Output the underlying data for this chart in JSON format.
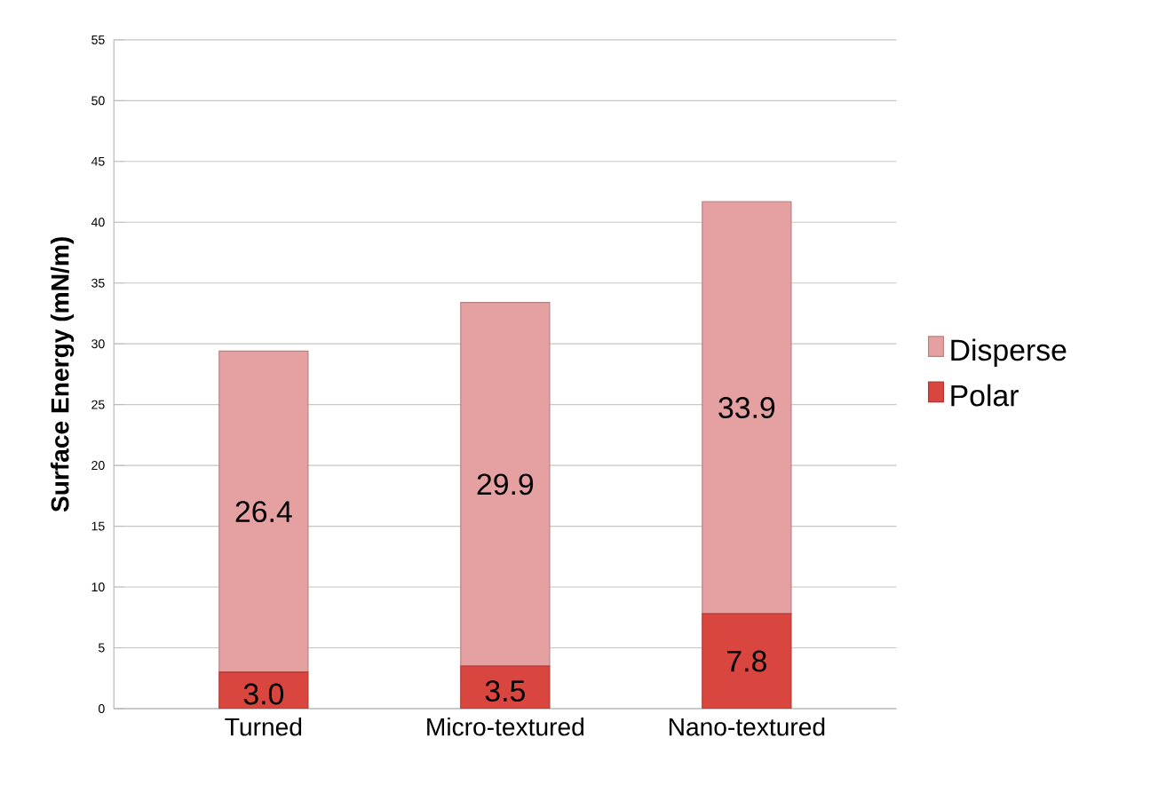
{
  "chart_data": {
    "type": "bar",
    "stacked": true,
    "ylabel": "Surface Energy (mN/m)",
    "categories": [
      "Turned",
      "Micro-textured",
      "Nano-textured"
    ],
    "series": [
      {
        "name": "Polar",
        "color": "#d9453f",
        "values": [
          3.0,
          3.5,
          7.8
        ],
        "value_labels": [
          "3.0",
          "3.5",
          "7.8"
        ]
      },
      {
        "name": "Disperse",
        "color": "#e5a1a1",
        "values": [
          26.4,
          29.9,
          33.9
        ],
        "value_labels": [
          "26.4",
          "29.9",
          "33.9"
        ]
      }
    ],
    "ylim": [
      0,
      55
    ],
    "yticks": [
      0,
      5,
      10,
      15,
      20,
      25,
      30,
      35,
      40,
      45,
      50,
      55
    ],
    "grid": "y",
    "legend": "right"
  }
}
